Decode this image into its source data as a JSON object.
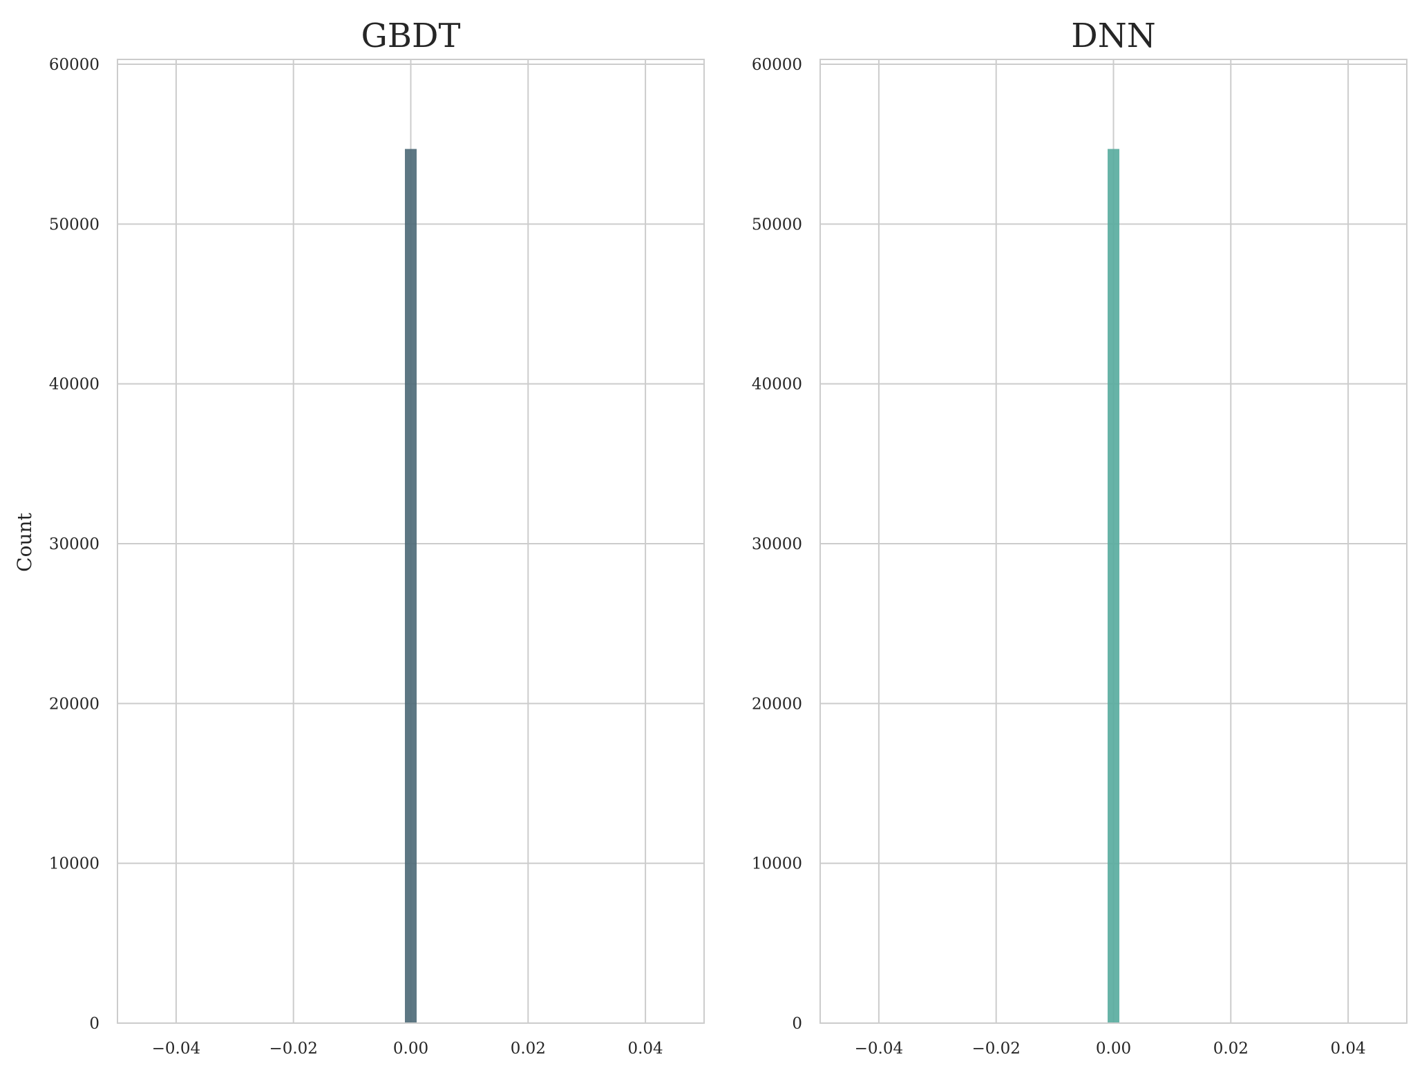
{
  "chart_data": [
    {
      "type": "bar",
      "title": "GBDT",
      "xlabel": "",
      "ylabel": "Count",
      "xlim": [
        -0.05,
        0.05
      ],
      "ylim": [
        0,
        60000
      ],
      "x_ticks": [
        -0.04,
        -0.02,
        0.0,
        0.02,
        0.04
      ],
      "x_tick_labels": [
        "−0.04",
        "−0.02",
        "0.00",
        "0.02",
        "0.04"
      ],
      "y_ticks": [
        0,
        10000,
        20000,
        30000,
        40000,
        50000,
        60000
      ],
      "y_tick_labels": [
        "0",
        "10000",
        "20000",
        "30000",
        "40000",
        "50000",
        "60000"
      ],
      "grid": true,
      "bins": [
        {
          "x0": -0.001,
          "x1": 0.001,
          "count": 54700
        }
      ],
      "color": "#4f6b78"
    },
    {
      "type": "bar",
      "title": "DNN",
      "xlabel": "",
      "ylabel": "",
      "xlim": [
        -0.05,
        0.05
      ],
      "ylim": [
        0,
        60000
      ],
      "x_ticks": [
        -0.04,
        -0.02,
        0.0,
        0.02,
        0.04
      ],
      "x_tick_labels": [
        "−0.04",
        "−0.02",
        "0.00",
        "0.02",
        "0.04"
      ],
      "y_ticks": [
        0,
        10000,
        20000,
        30000,
        40000,
        50000,
        60000
      ],
      "y_tick_labels": [
        "0",
        "10000",
        "20000",
        "30000",
        "40000",
        "50000",
        "60000"
      ],
      "grid": true,
      "bins": [
        {
          "x0": -0.001,
          "x1": 0.001,
          "count": 54700
        }
      ],
      "color": "#5aada0"
    }
  ]
}
